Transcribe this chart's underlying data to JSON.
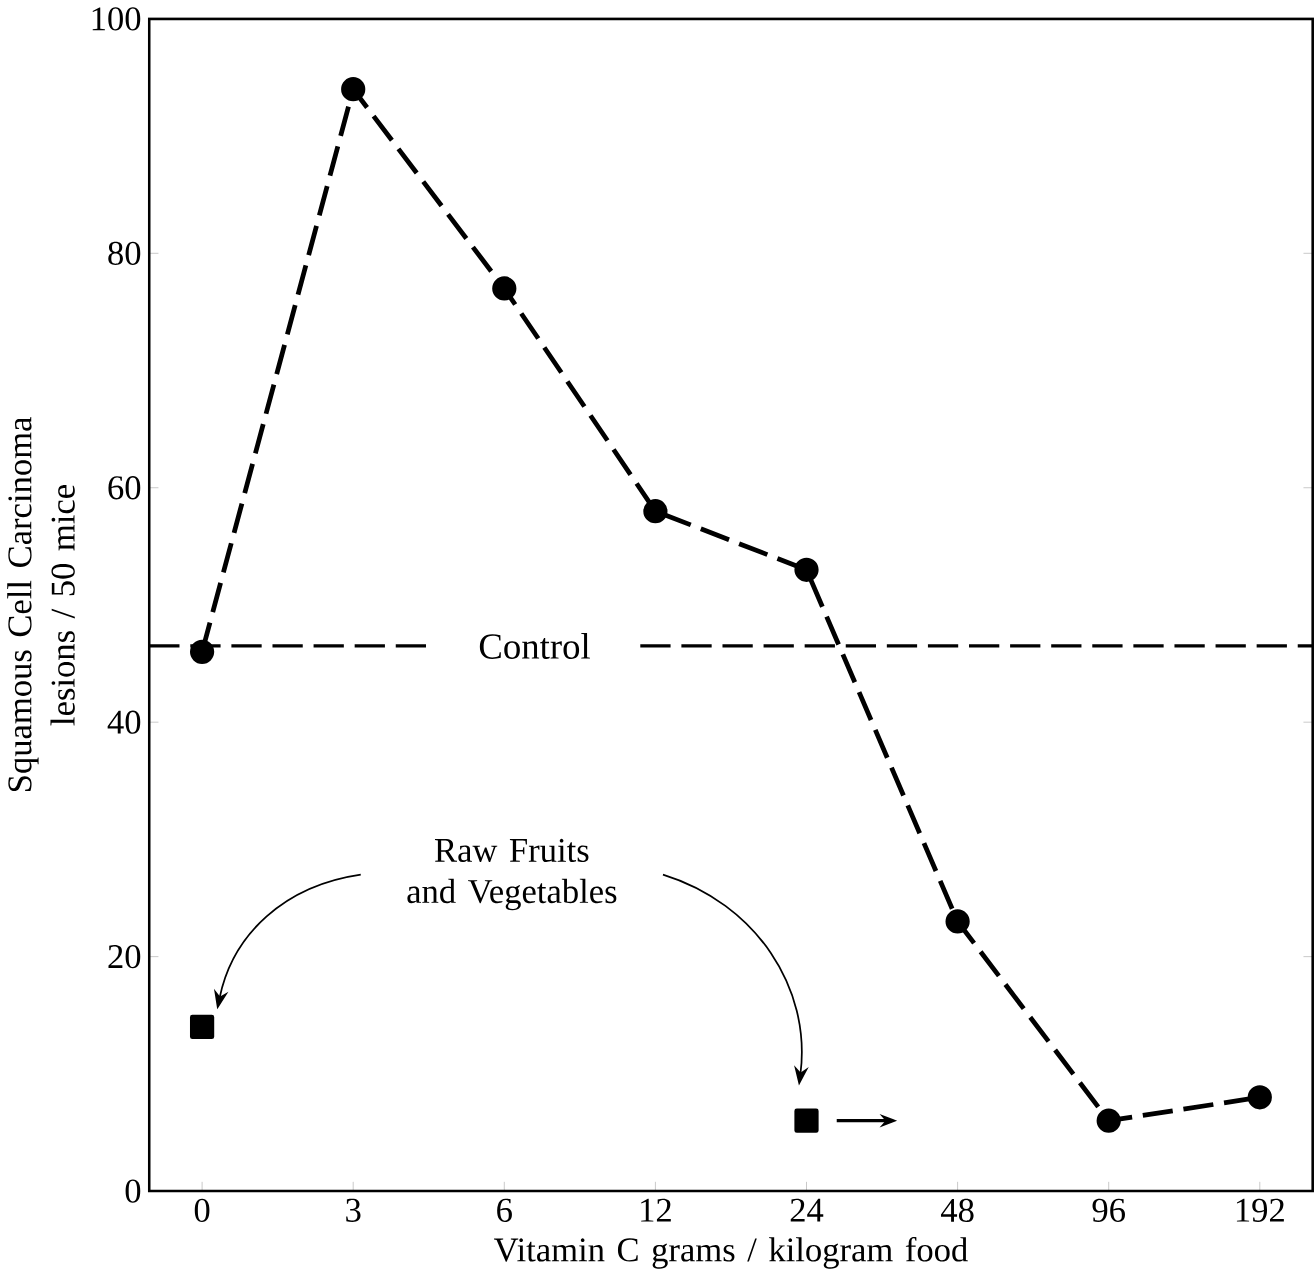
{
  "chart_data": {
    "type": "line",
    "xlabel": "Vitamin C grams / kilogram food",
    "ylabel": "Squamous Cell Carcinoma lesions / 50 mice",
    "categories": [
      "0",
      "3",
      "6",
      "12",
      "24",
      "48",
      "96",
      "192"
    ],
    "series": [
      {
        "color": "#000000",
        "marker": "circle",
        "line_style": "dashed",
        "values": [
          46,
          94,
          77,
          58,
          53,
          23,
          6,
          8
        ]
      },
      {
        "type": "scatter",
        "color": "#000000",
        "marker": "square",
        "values": [
          14,
          null,
          null,
          null,
          6,
          null,
          null,
          null
        ]
      }
    ],
    "ylim": [
      0,
      100
    ],
    "yticks": [
      0,
      20,
      40,
      60,
      80,
      100
    ],
    "ref_lines": [
      {
        "axis": "y",
        "value": 46.5,
        "label": "Control",
        "line_style": "dashed",
        "color": "#000000"
      }
    ],
    "annotations": [
      "Raw Fruits and Vegetables"
    ],
    "grid": false
  }
}
